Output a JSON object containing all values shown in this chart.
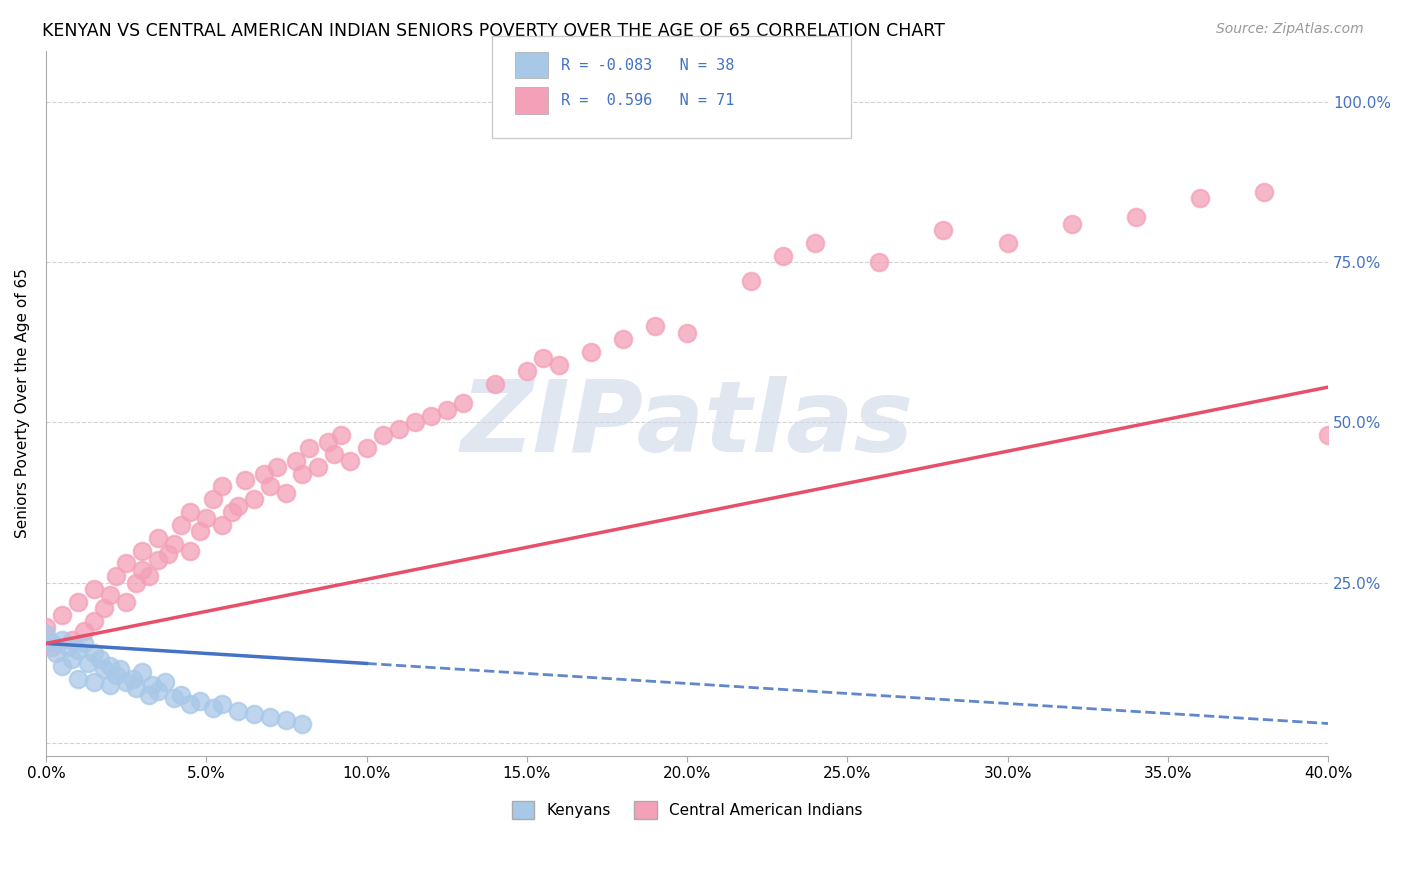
{
  "title": "KENYAN VS CENTRAL AMERICAN INDIAN SENIORS POVERTY OVER THE AGE OF 65 CORRELATION CHART",
  "source": "Source: ZipAtlas.com",
  "ylabel": "Seniors Poverty Over the Age of 65",
  "xlim": [
    0.0,
    0.4
  ],
  "ylim": [
    -0.02,
    1.08
  ],
  "color_kenyan": "#a8c8e8",
  "color_central": "#f4a0b8",
  "color_kenyan_line": "#4472c4",
  "color_central_line": "#e8506a",
  "background_color": "#ffffff",
  "watermark": "ZIPatlas",
  "watermark_color": "#ccd8e8",
  "kenyan_x": [
    0.0,
    0.002,
    0.003,
    0.005,
    0.005,
    0.007,
    0.008,
    0.01,
    0.01,
    0.012,
    0.013,
    0.015,
    0.015,
    0.017,
    0.018,
    0.02,
    0.02,
    0.022,
    0.023,
    0.025,
    0.027,
    0.028,
    0.03,
    0.032,
    0.033,
    0.035,
    0.037,
    0.04,
    0.042,
    0.045,
    0.048,
    0.052,
    0.055,
    0.06,
    0.065,
    0.07,
    0.075,
    0.08
  ],
  "kenyan_y": [
    0.17,
    0.155,
    0.14,
    0.16,
    0.12,
    0.15,
    0.13,
    0.145,
    0.1,
    0.155,
    0.125,
    0.14,
    0.095,
    0.13,
    0.115,
    0.12,
    0.09,
    0.105,
    0.115,
    0.095,
    0.1,
    0.085,
    0.11,
    0.075,
    0.09,
    0.08,
    0.095,
    0.07,
    0.075,
    0.06,
    0.065,
    0.055,
    0.06,
    0.05,
    0.045,
    0.04,
    0.035,
    0.03
  ],
  "central_x": [
    0.0,
    0.002,
    0.005,
    0.008,
    0.01,
    0.012,
    0.015,
    0.015,
    0.018,
    0.02,
    0.022,
    0.025,
    0.025,
    0.028,
    0.03,
    0.03,
    0.032,
    0.035,
    0.035,
    0.038,
    0.04,
    0.042,
    0.045,
    0.045,
    0.048,
    0.05,
    0.052,
    0.055,
    0.055,
    0.058,
    0.06,
    0.062,
    0.065,
    0.068,
    0.07,
    0.072,
    0.075,
    0.078,
    0.08,
    0.082,
    0.085,
    0.088,
    0.09,
    0.092,
    0.095,
    0.1,
    0.105,
    0.11,
    0.115,
    0.12,
    0.125,
    0.13,
    0.14,
    0.15,
    0.155,
    0.16,
    0.17,
    0.18,
    0.19,
    0.2,
    0.22,
    0.23,
    0.24,
    0.26,
    0.28,
    0.3,
    0.32,
    0.34,
    0.36,
    0.38,
    0.4
  ],
  "central_y": [
    0.18,
    0.15,
    0.2,
    0.16,
    0.22,
    0.175,
    0.24,
    0.19,
    0.21,
    0.23,
    0.26,
    0.22,
    0.28,
    0.25,
    0.27,
    0.3,
    0.26,
    0.285,
    0.32,
    0.295,
    0.31,
    0.34,
    0.3,
    0.36,
    0.33,
    0.35,
    0.38,
    0.34,
    0.4,
    0.36,
    0.37,
    0.41,
    0.38,
    0.42,
    0.4,
    0.43,
    0.39,
    0.44,
    0.42,
    0.46,
    0.43,
    0.47,
    0.45,
    0.48,
    0.44,
    0.46,
    0.48,
    0.49,
    0.5,
    0.51,
    0.52,
    0.53,
    0.56,
    0.58,
    0.6,
    0.59,
    0.61,
    0.63,
    0.65,
    0.64,
    0.72,
    0.76,
    0.78,
    0.75,
    0.8,
    0.78,
    0.81,
    0.82,
    0.85,
    0.86,
    0.48
  ],
  "kenyan_line_x": [
    0.0,
    0.4
  ],
  "kenyan_line_y": [
    0.155,
    0.03
  ],
  "central_line_x": [
    0.0,
    0.4
  ],
  "central_line_y": [
    0.155,
    0.555
  ]
}
